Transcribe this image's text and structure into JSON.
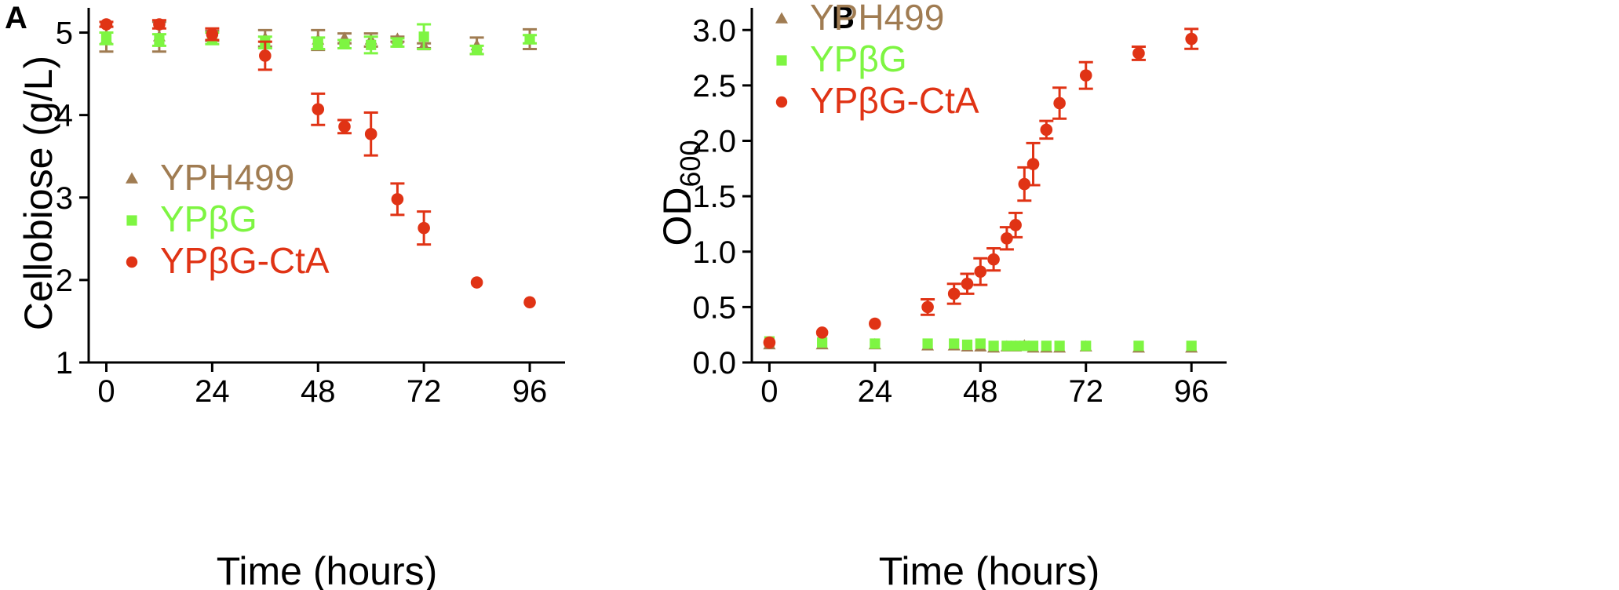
{
  "colors": {
    "YPH499": "#a07c52",
    "YPbG": "#7ef542",
    "YPbG-CtA": "#e03315",
    "axis": "#000000"
  },
  "chart_data": [
    {
      "panel": "A",
      "type": "scatter",
      "xlabel": "Time (hours)",
      "ylabel": "Cellobiose (g/L)",
      "xlim": [
        -4,
        104
      ],
      "ylim": [
        1,
        5.3
      ],
      "xticks": [
        0,
        24,
        48,
        72,
        96
      ],
      "yticks": [
        1,
        2,
        3,
        4,
        5
      ],
      "legend_position": "center-left",
      "series": [
        {
          "name": "YPH499",
          "marker": "triangle",
          "color_key": "YPH499",
          "x": [
            0,
            12,
            24,
            36,
            48,
            54,
            60,
            66,
            72,
            84,
            96
          ],
          "y": [
            4.92,
            4.95,
            4.96,
            4.93,
            4.91,
            4.93,
            4.91,
            4.92,
            4.84,
            4.84,
            4.92
          ],
          "err": [
            0.15,
            0.18,
            0.06,
            0.1,
            0.12,
            0.06,
            0.08,
            0.03,
            0.03,
            0.1,
            0.12
          ]
        },
        {
          "name": "YPβG",
          "marker": "square",
          "color_key": "YPbG",
          "x": [
            0,
            12,
            24,
            36,
            48,
            54,
            60,
            66,
            72,
            84,
            96
          ],
          "y": [
            4.93,
            4.91,
            4.93,
            4.88,
            4.87,
            4.86,
            4.85,
            4.88,
            4.95,
            4.79,
            4.92
          ],
          "err": [
            0.07,
            0.07,
            0.07,
            0.07,
            0.07,
            0.05,
            0.1,
            0.05,
            0.15,
            0.05,
            0.05
          ]
        },
        {
          "name": "YPβG-CtA",
          "marker": "circle",
          "color_key": "YPbG-CtA",
          "x": [
            0,
            12,
            24,
            36,
            48,
            54,
            60,
            66,
            72,
            84,
            96
          ],
          "y": [
            5.1,
            5.1,
            4.98,
            4.72,
            4.07,
            3.86,
            3.77,
            2.98,
            2.63,
            1.97,
            1.73
          ],
          "err": [
            0.03,
            0.05,
            0.07,
            0.17,
            0.19,
            0.08,
            0.26,
            0.19,
            0.2,
            0,
            0
          ]
        }
      ]
    },
    {
      "panel": "B",
      "type": "scatter",
      "xlabel": "Time (hours)",
      "ylabel": "OD",
      "ylabel_subscript": "600",
      "xlim": [
        -4,
        104
      ],
      "ylim": [
        0,
        3.2
      ],
      "xticks": [
        0,
        24,
        48,
        72,
        96
      ],
      "yticks": [
        "0.0",
        "0.5",
        "1.0",
        "1.5",
        "2.0",
        "2.5",
        "3.0"
      ],
      "legend_position": "top-left",
      "series": [
        {
          "name": "YPH499",
          "marker": "triangle",
          "color_key": "YPH499",
          "x": [
            0,
            12,
            24,
            36,
            42,
            45,
            48,
            51,
            54,
            56,
            58,
            60,
            63,
            66,
            72,
            84,
            96
          ],
          "y": [
            0.16,
            0.16,
            0.16,
            0.15,
            0.15,
            0.14,
            0.14,
            0.13,
            0.14,
            0.14,
            0.15,
            0.13,
            0.13,
            0.13,
            0.14,
            0.13,
            0.13
          ],
          "err": [
            0,
            0,
            0,
            0,
            0,
            0,
            0,
            0,
            0,
            0,
            0,
            0,
            0,
            0,
            0,
            0,
            0
          ]
        },
        {
          "name": "YPβG",
          "marker": "square",
          "color_key": "YPbG",
          "x": [
            0,
            12,
            24,
            36,
            42,
            45,
            48,
            51,
            54,
            56,
            58,
            60,
            63,
            66,
            72,
            84,
            96
          ],
          "y": [
            0.19,
            0.18,
            0.17,
            0.17,
            0.17,
            0.16,
            0.17,
            0.15,
            0.15,
            0.15,
            0.15,
            0.15,
            0.15,
            0.15,
            0.15,
            0.15,
            0.15
          ],
          "err": [
            0,
            0,
            0,
            0,
            0,
            0,
            0,
            0,
            0,
            0,
            0,
            0,
            0,
            0,
            0,
            0,
            0
          ]
        },
        {
          "name": "YPβG-CtA",
          "marker": "circle",
          "color_key": "YPbG-CtA",
          "x": [
            0,
            12,
            24,
            36,
            42,
            45,
            48,
            51,
            54,
            56,
            58,
            60,
            63,
            66,
            72,
            84,
            96
          ],
          "y": [
            0.18,
            0.27,
            0.35,
            0.5,
            0.62,
            0.71,
            0.82,
            0.93,
            1.12,
            1.24,
            1.61,
            1.79,
            2.1,
            2.34,
            2.59,
            2.79,
            2.92
          ],
          "err": [
            0,
            0,
            0,
            0.07,
            0.09,
            0.09,
            0.12,
            0.1,
            0.1,
            0.11,
            0.15,
            0.19,
            0.08,
            0.14,
            0.12,
            0.06,
            0.09
          ]
        }
      ]
    }
  ]
}
